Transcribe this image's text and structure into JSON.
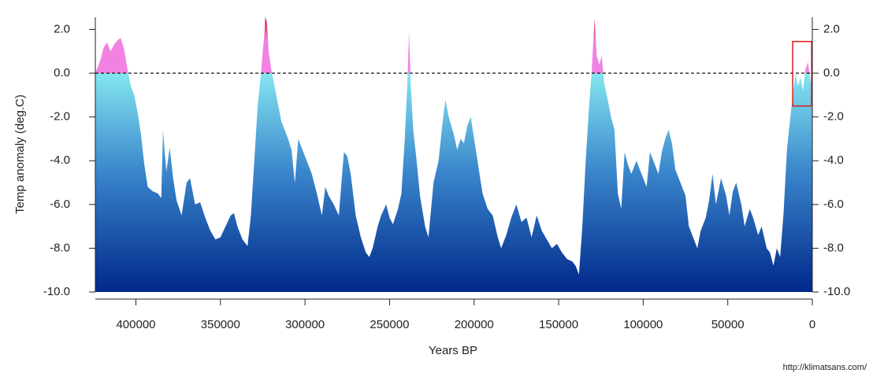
{
  "chart_data": {
    "type": "area",
    "y_label": "Temp anomaly (deg.C)",
    "x_label": "Years BP",
    "source": "http://klimatsans.com/",
    "xlim": [
      424000,
      0
    ],
    "ylim": [
      -10,
      2.5
    ],
    "xticks": [
      400000,
      350000,
      300000,
      250000,
      200000,
      150000,
      100000,
      50000,
      0
    ],
    "yticks": [
      {
        "value": 2,
        "label": "2.0"
      },
      {
        "value": 0,
        "label": "0.0"
      },
      {
        "value": -2,
        "label": "-2.0"
      },
      {
        "value": -4,
        "label": "-4.0"
      },
      {
        "value": -6,
        "label": "-6.0"
      },
      {
        "value": -8,
        "label": "-8.0"
      },
      {
        "value": -10,
        "label": "-10.0"
      }
    ],
    "hline": 0,
    "colors": {
      "bottom": "#00288a",
      "mid": "#3a86cc",
      "zero_below": "#84e6f0",
      "zero_above": "#f282e2",
      "top": "#e0202c"
    },
    "highlight_box": {
      "x": [
        11600,
        400
      ],
      "y": [
        -1.5,
        1.45
      ],
      "color": "#dd1c1c"
    },
    "x": [
      424000,
      421000,
      419000,
      417000,
      415000,
      413000,
      411000,
      409000,
      407000,
      405000,
      403000,
      401000,
      399000,
      397000,
      395000,
      393000,
      390000,
      387000,
      385000,
      384000,
      382000,
      380000,
      378000,
      376000,
      373000,
      370000,
      368000,
      365000,
      362000,
      359000,
      356000,
      353000,
      350000,
      347000,
      344000,
      342000,
      340000,
      337000,
      334000,
      332000,
      330000,
      328000,
      326000,
      325000,
      324000,
      323500,
      322500,
      321500,
      320000,
      318000,
      316000,
      314000,
      312000,
      310000,
      308000,
      306000,
      304000,
      302000,
      299000,
      296000,
      293000,
      290000,
      288000,
      286000,
      283000,
      280000,
      277000,
      275000,
      273000,
      270000,
      267000,
      264000,
      262000,
      260000,
      257000,
      255000,
      252000,
      250000,
      248000,
      245000,
      243000,
      241000,
      239500,
      238500,
      237500,
      236000,
      234000,
      232000,
      229000,
      227000,
      224000,
      221000,
      219000,
      217000,
      215000,
      212000,
      210000,
      208000,
      206000,
      204000,
      202000,
      200000,
      198000,
      195000,
      192000,
      189000,
      186000,
      184000,
      181000,
      178000,
      175000,
      172000,
      169000,
      166000,
      163000,
      160000,
      157000,
      154000,
      151000,
      148000,
      145000,
      142000,
      140000,
      138000,
      136000,
      134000,
      132000,
      130500,
      129500,
      128700,
      127500,
      126000,
      124500,
      123000,
      121000,
      119000,
      117000,
      115000,
      113000,
      111000,
      109000,
      107000,
      104000,
      102000,
      100000,
      98000,
      96000,
      94000,
      91000,
      89000,
      87000,
      85000,
      83000,
      81000,
      78000,
      75000,
      73000,
      70000,
      68000,
      66000,
      63000,
      61000,
      59000,
      57000,
      54000,
      51000,
      49000,
      47000,
      45000,
      42000,
      40000,
      37000,
      35000,
      32000,
      30000,
      27000,
      25000,
      23000,
      21000,
      19000,
      17000,
      15000,
      13000,
      11500,
      10000,
      8500,
      7000,
      5500,
      4000,
      2500,
      1000,
      0
    ],
    "values": [
      0.0,
      0.6,
      1.2,
      1.4,
      1.0,
      1.3,
      1.5,
      1.6,
      1.1,
      0.2,
      -0.6,
      -1.0,
      -1.8,
      -2.8,
      -4.2,
      -5.2,
      -5.4,
      -5.5,
      -5.7,
      -2.6,
      -4.5,
      -3.4,
      -4.8,
      -5.8,
      -6.5,
      -5.0,
      -4.8,
      -6.0,
      -5.9,
      -6.6,
      -7.2,
      -7.6,
      -7.5,
      -7.0,
      -6.5,
      -6.4,
      -7.0,
      -7.6,
      -7.9,
      -6.5,
      -4.0,
      -1.5,
      0.0,
      1.0,
      1.8,
      2.6,
      2.3,
      1.0,
      0.2,
      -0.6,
      -1.4,
      -2.2,
      -2.6,
      -3.0,
      -3.5,
      -5.0,
      -3.0,
      -3.4,
      -4.0,
      -4.6,
      -5.5,
      -6.5,
      -5.2,
      -5.6,
      -6.0,
      -6.5,
      -3.6,
      -3.8,
      -4.6,
      -6.5,
      -7.5,
      -8.2,
      -8.4,
      -8.0,
      -7.0,
      -6.5,
      -6.0,
      -6.6,
      -6.9,
      -6.2,
      -5.5,
      -3.0,
      -0.5,
      1.9,
      -0.5,
      -2.6,
      -4.0,
      -5.6,
      -7.0,
      -7.5,
      -5.0,
      -4.0,
      -2.5,
      -1.2,
      -2.0,
      -2.8,
      -3.5,
      -3.0,
      -3.2,
      -2.4,
      -2.0,
      -3.0,
      -4.0,
      -5.5,
      -6.2,
      -6.5,
      -7.5,
      -8.0,
      -7.4,
      -6.6,
      -6.0,
      -6.8,
      -6.6,
      -7.5,
      -6.5,
      -7.2,
      -7.6,
      -8.0,
      -7.8,
      -8.2,
      -8.5,
      -8.6,
      -8.8,
      -9.2,
      -7.0,
      -4.0,
      -1.5,
      0.0,
      1.5,
      2.5,
      0.8,
      0.4,
      0.8,
      -0.5,
      -1.2,
      -2.0,
      -2.6,
      -5.5,
      -6.2,
      -3.6,
      -4.2,
      -4.6,
      -4.0,
      -4.4,
      -4.8,
      -5.2,
      -3.6,
      -4.0,
      -4.6,
      -3.6,
      -3.0,
      -2.6,
      -3.2,
      -4.4,
      -5.0,
      -5.6,
      -7.0,
      -7.6,
      -8.0,
      -7.2,
      -6.6,
      -5.8,
      -4.6,
      -6.0,
      -4.8,
      -5.6,
      -6.5,
      -5.4,
      -5.0,
      -6.0,
      -7.0,
      -6.2,
      -6.6,
      -7.4,
      -7.0,
      -8.0,
      -8.2,
      -8.8,
      -8.0,
      -8.4,
      -6.4,
      -3.5,
      -2.0,
      -1.0,
      0.0,
      -0.6,
      -0.2,
      -0.8,
      0.2,
      0.5,
      -0.4,
      -0.5
    ]
  }
}
